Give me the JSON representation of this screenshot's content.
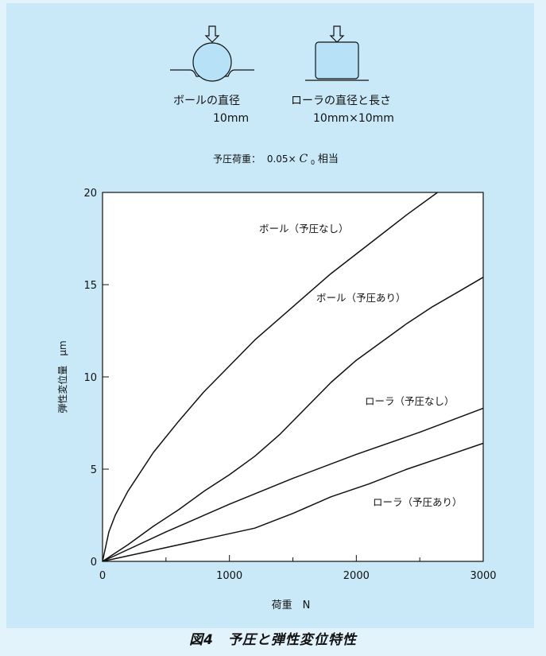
{
  "header": {
    "ball_label": "ボールの直径",
    "ball_size": "10mm",
    "roller_label": "ローラの直径と長さ",
    "roller_size": "10mm×10mm",
    "preload_label": "予圧荷重：",
    "preload_value": "0.05×",
    "preload_symbol": "C",
    "preload_subscript": "0",
    "preload_suffix": "相当"
  },
  "figure_caption": "図4　予圧と弾性変位特性",
  "chart_data": {
    "type": "line",
    "xlabel": "荷重　N",
    "ylabel": "弾性変位量　μm",
    "xlim": [
      0,
      3000
    ],
    "ylim": [
      0,
      20
    ],
    "x_ticks": [
      "0",
      "1000",
      "2000",
      "3000"
    ],
    "y_ticks": [
      "0",
      "5",
      "10",
      "15",
      "20"
    ],
    "grid": false,
    "series": [
      {
        "name": "ボール（予圧なし）",
        "x": [
          0,
          50,
          100,
          200,
          400,
          600,
          800,
          1000,
          1200,
          1500,
          1800,
          2100,
          2400,
          2640
        ],
        "y": [
          0,
          1.6,
          2.5,
          3.8,
          5.9,
          7.6,
          9.2,
          10.6,
          12.0,
          13.8,
          15.6,
          17.2,
          18.8,
          20.0
        ]
      },
      {
        "name": "ボール（予圧あり）",
        "x": [
          0,
          200,
          400,
          600,
          800,
          1000,
          1200,
          1400,
          1600,
          1800,
          2000,
          2200,
          2400,
          2600,
          2800,
          3000
        ],
        "y": [
          0,
          0.9,
          1.9,
          2.8,
          3.8,
          4.7,
          5.7,
          6.9,
          8.3,
          9.7,
          10.9,
          11.9,
          12.9,
          13.8,
          14.6,
          15.4
        ]
      },
      {
        "name": "ローラ（予圧なし）",
        "x": [
          0,
          500,
          1000,
          1500,
          2000,
          2500,
          3000
        ],
        "y": [
          0,
          1.6,
          3.1,
          4.5,
          5.8,
          7.0,
          8.3
        ]
      },
      {
        "name": "ローラ（予圧あり）",
        "x": [
          0,
          400,
          800,
          1200,
          1500,
          1800,
          2100,
          2400,
          2700,
          3000
        ],
        "y": [
          0,
          0.6,
          1.2,
          1.8,
          2.6,
          3.5,
          4.2,
          5.0,
          5.7,
          6.4
        ]
      }
    ]
  }
}
